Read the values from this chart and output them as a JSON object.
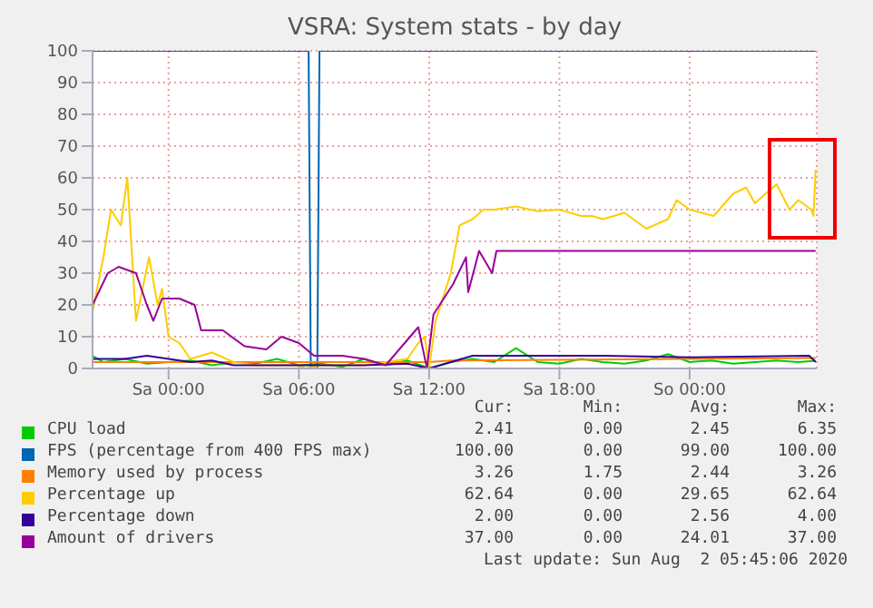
{
  "chart_data": {
    "type": "line",
    "title": "VSRA: System stats - by day",
    "xlim": [
      "2020-07-31T20:30",
      "2020-08-02T05:51"
    ],
    "xticks": [
      {
        "value": "2020-08-01T00:00",
        "label": "Sa 00:00"
      },
      {
        "value": "2020-08-01T06:00",
        "label": "Sa 06:00"
      },
      {
        "value": "2020-08-01T12:00",
        "label": "Sa 12:00"
      },
      {
        "value": "2020-08-01T18:00",
        "label": "Sa 18:00"
      },
      {
        "value": "2020-08-02T00:00",
        "label": "So 00:00"
      }
    ],
    "ylim": [
      0,
      100
    ],
    "yticks": [
      0,
      10,
      20,
      30,
      40,
      50,
      60,
      70,
      80,
      90,
      100
    ],
    "grid": true,
    "legend": "bottom",
    "marker": "none",
    "line_style": "solid",
    "series": [
      {
        "name": "CPU load",
        "color": "#00cc00",
        "x": [
          "2020-07-31T20:30",
          "2020-07-31T21:00",
          "2020-07-31T22:00",
          "2020-07-31T23:00",
          "2020-08-01T00:00",
          "2020-08-01T01:00",
          "2020-08-01T02:00",
          "2020-08-01T03:00",
          "2020-08-01T04:00",
          "2020-08-01T05:00",
          "2020-08-01T06:00",
          "2020-08-01T07:00",
          "2020-08-01T08:00",
          "2020-08-01T09:00",
          "2020-08-01T10:00",
          "2020-08-01T11:00",
          "2020-08-01T12:00",
          "2020-08-01T13:00",
          "2020-08-01T14:00",
          "2020-08-01T15:00",
          "2020-08-01T16:00",
          "2020-08-01T17:00",
          "2020-08-01T18:00",
          "2020-08-01T19:00",
          "2020-08-01T20:00",
          "2020-08-01T21:00",
          "2020-08-01T22:00",
          "2020-08-01T23:00",
          "2020-08-02T00:00",
          "2020-08-02T01:00",
          "2020-08-02T02:00",
          "2020-08-02T03:00",
          "2020-08-02T04:00",
          "2020-08-02T05:00",
          "2020-08-02T05:48"
        ],
        "values": [
          4,
          2,
          3,
          1.5,
          2,
          2.5,
          1,
          2,
          1.5,
          3,
          1,
          1.5,
          0.5,
          3,
          1,
          2.5,
          0,
          2,
          3,
          2,
          6.4,
          2,
          1.5,
          3,
          2,
          1.5,
          2.5,
          4.5,
          2,
          2.5,
          1.5,
          2,
          2.5,
          2,
          2.4
        ]
      },
      {
        "name": "FPS (percentage from 400 FPS max)",
        "color": "#0066b3",
        "x": [
          "2020-07-31T20:30",
          "2020-08-01T06:27",
          "2020-08-01T06:33",
          "2020-08-01T06:51",
          "2020-08-01T06:57",
          "2020-08-02T05:48"
        ],
        "values": [
          100,
          100,
          0,
          0,
          100,
          100
        ]
      },
      {
        "name": "Memory used by process",
        "color": "#ff8000",
        "x": [
          "2020-07-31T20:30",
          "2020-08-01T12:00",
          "2020-08-01T13:00",
          "2020-08-02T00:00",
          "2020-08-02T05:48"
        ],
        "values": [
          2,
          2,
          2.5,
          3,
          3.3
        ]
      },
      {
        "name": "Percentage up",
        "color": "#ffcc00",
        "x": [
          "2020-07-31T20:30",
          "2020-07-31T21:00",
          "2020-07-31T21:21",
          "2020-07-31T21:48",
          "2020-07-31T22:06",
          "2020-07-31T22:30",
          "2020-07-31T22:48",
          "2020-07-31T23:06",
          "2020-07-31T23:30",
          "2020-07-31T23:42",
          "2020-08-01T00:00",
          "2020-08-01T00:30",
          "2020-08-01T01:00",
          "2020-08-01T02:00",
          "2020-08-01T03:00",
          "2020-08-01T04:00",
          "2020-08-01T06:00",
          "2020-08-01T06:18",
          "2020-08-01T07:00",
          "2020-08-01T09:00",
          "2020-08-01T10:00",
          "2020-08-01T11:00",
          "2020-08-01T11:30",
          "2020-08-01T11:48",
          "2020-08-01T12:00",
          "2020-08-01T12:18",
          "2020-08-01T13:00",
          "2020-08-01T13:24",
          "2020-08-01T14:00",
          "2020-08-01T14:30",
          "2020-08-01T15:00",
          "2020-08-01T16:00",
          "2020-08-01T17:00",
          "2020-08-01T18:00",
          "2020-08-01T19:00",
          "2020-08-01T19:30",
          "2020-08-01T20:00",
          "2020-08-01T21:00",
          "2020-08-01T22:00",
          "2020-08-01T23:00",
          "2020-08-01T23:24",
          "2020-08-02T00:00",
          "2020-08-02T01:06",
          "2020-08-02T02:00",
          "2020-08-02T02:36",
          "2020-08-02T03:00",
          "2020-08-02T04:00",
          "2020-08-02T04:36",
          "2020-08-02T05:00",
          "2020-08-02T05:36",
          "2020-08-02T05:42",
          "2020-08-02T05:48"
        ],
        "values": [
          18,
          35,
          50,
          45,
          60,
          15,
          25,
          35,
          20,
          25,
          10,
          8,
          3,
          5,
          2,
          1,
          1,
          0,
          1,
          1,
          2,
          3,
          8,
          10,
          0,
          15,
          30,
          45,
          47,
          50,
          50,
          51,
          49.5,
          50,
          48,
          48,
          47,
          49,
          44,
          47,
          53,
          50,
          48,
          55,
          57,
          52,
          58,
          50,
          53,
          50,
          48,
          62.6
        ]
      },
      {
        "name": "Percentage down",
        "color": "#330099",
        "x": [
          "2020-07-31T20:30",
          "2020-07-31T22:00",
          "2020-07-31T23:00",
          "2020-08-01T00:00",
          "2020-08-01T01:00",
          "2020-08-01T02:00",
          "2020-08-01T03:00",
          "2020-08-01T06:00",
          "2020-08-01T09:00",
          "2020-08-01T11:00",
          "2020-08-01T12:00",
          "2020-08-01T13:00",
          "2020-08-01T14:00",
          "2020-08-01T20:00",
          "2020-08-02T00:00",
          "2020-08-02T05:30",
          "2020-08-02T05:48"
        ],
        "values": [
          3,
          3,
          4,
          3,
          2,
          2.5,
          1,
          1,
          1,
          1.5,
          0,
          2,
          4,
          4,
          3.5,
          4,
          2
        ]
      },
      {
        "name": "Amount of drivers",
        "color": "#990099",
        "x": [
          "2020-07-31T20:30",
          "2020-07-31T21:12",
          "2020-07-31T21:42",
          "2020-07-31T22:30",
          "2020-07-31T23:00",
          "2020-07-31T23:18",
          "2020-07-31T23:42",
          "2020-08-01T00:30",
          "2020-08-01T01:12",
          "2020-08-01T01:30",
          "2020-08-01T02:30",
          "2020-08-01T03:30",
          "2020-08-01T04:30",
          "2020-08-01T05:12",
          "2020-08-01T06:00",
          "2020-08-01T06:42",
          "2020-08-01T08:00",
          "2020-08-01T09:00",
          "2020-08-01T10:00",
          "2020-08-01T11:30",
          "2020-08-01T11:54",
          "2020-08-01T12:12",
          "2020-08-01T13:06",
          "2020-08-01T13:42",
          "2020-08-01T13:48",
          "2020-08-01T14:18",
          "2020-08-01T14:54",
          "2020-08-01T15:06",
          "2020-08-02T05:48"
        ],
        "values": [
          20,
          30,
          32,
          30,
          20,
          15,
          22,
          22,
          20,
          12,
          12,
          7,
          6,
          10,
          8,
          4,
          4,
          3,
          1,
          13,
          0,
          17,
          26.5,
          35,
          24,
          37,
          30,
          37,
          37
        ]
      }
    ],
    "annotations": [
      "Cur:",
      "Min:",
      "Avg:",
      "Max:",
      "2.41",
      "0.00",
      "2.45",
      "6.35",
      "100.00",
      "0.00",
      "99.00",
      "100.00",
      "3.26",
      "1.75",
      "2.44",
      "3.26",
      "62.64",
      "0.00",
      "29.65",
      "62.64",
      "2.00",
      "0.00",
      "2.56",
      "4.00",
      "37.00",
      "0.00",
      "24.01",
      "37.00",
      "Last update: Sun Aug  2 05:45:06 2020"
    ]
  }
}
